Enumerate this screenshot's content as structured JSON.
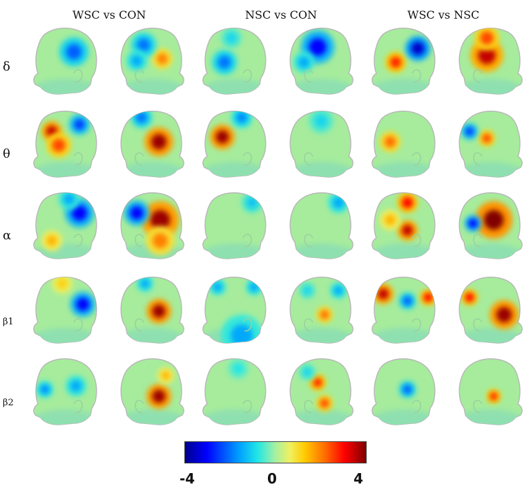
{
  "columns": [
    "WSC vs CON",
    "NSC vs CON",
    "WSC vs NSC"
  ],
  "rows": [
    "δ",
    "θ",
    "α",
    "β1",
    "β2"
  ],
  "colorbar": {
    "min_label": "-4",
    "mid_label": "0",
    "max_label": "4",
    "range": [
      -4,
      4
    ]
  },
  "heads": [
    [
      {
        "view": "L",
        "blobs": [
          [
            0.62,
            0.35,
            -2.2,
            0.14
          ]
        ]
      },
      {
        "view": "R",
        "blobs": [
          [
            0.35,
            0.45,
            2.0,
            0.1
          ],
          [
            0.62,
            0.25,
            -2.0,
            0.12
          ],
          [
            0.72,
            0.48,
            -1.5,
            0.1
          ]
        ]
      },
      {
        "view": "L",
        "blobs": [
          [
            0.35,
            0.5,
            -2.0,
            0.12
          ],
          [
            0.45,
            0.15,
            -1.0,
            0.1
          ]
        ]
      },
      {
        "view": "R",
        "blobs": [
          [
            0.55,
            0.28,
            -3.0,
            0.16
          ],
          [
            0.75,
            0.5,
            -1.5,
            0.1
          ]
        ]
      },
      {
        "view": "L",
        "blobs": [
          [
            0.38,
            0.5,
            2.8,
            0.1
          ],
          [
            0.7,
            0.3,
            -3.5,
            0.12
          ]
        ]
      },
      {
        "view": "R",
        "blobs": [
          [
            0.55,
            0.4,
            3.5,
            0.16
          ],
          [
            0.55,
            0.15,
            2.5,
            0.12
          ]
        ]
      }
    ],
    [
      {
        "view": "L",
        "blobs": [
          [
            0.3,
            0.3,
            3.5,
            0.1
          ],
          [
            0.4,
            0.5,
            2.5,
            0.12
          ],
          [
            0.7,
            0.2,
            -2.5,
            0.1
          ]
        ]
      },
      {
        "view": "R",
        "blobs": [
          [
            0.4,
            0.45,
            3.8,
            0.14
          ],
          [
            0.65,
            0.1,
            -2.0,
            0.1
          ]
        ]
      },
      {
        "view": "L",
        "blobs": [
          [
            0.32,
            0.38,
            3.8,
            0.12
          ],
          [
            0.6,
            0.1,
            -1.8,
            0.1
          ]
        ]
      },
      {
        "view": "R",
        "blobs": [
          [
            0.5,
            0.15,
            -1.0,
            0.12
          ]
        ]
      },
      {
        "view": "L",
        "blobs": [
          [
            0.3,
            0.45,
            2.2,
            0.1
          ]
        ]
      },
      {
        "view": "R",
        "blobs": [
          [
            0.55,
            0.4,
            2.5,
            0.08
          ],
          [
            0.8,
            0.3,
            -2.5,
            0.08
          ]
        ]
      }
    ],
    [
      {
        "view": "L",
        "blobs": [
          [
            0.7,
            0.3,
            -3.0,
            0.14
          ],
          [
            0.55,
            0.1,
            -1.5,
            0.1
          ],
          [
            0.3,
            0.7,
            1.5,
            0.1
          ]
        ]
      },
      {
        "view": "R",
        "blobs": [
          [
            0.38,
            0.4,
            3.8,
            0.18
          ],
          [
            0.38,
            0.7,
            2.0,
            0.14
          ],
          [
            0.72,
            0.3,
            -3.0,
            0.12
          ]
        ]
      },
      {
        "view": "L",
        "blobs": [
          [
            0.75,
            0.15,
            -1.2,
            0.1
          ]
        ]
      },
      {
        "view": "R",
        "blobs": [
          [
            0.25,
            0.15,
            -1.5,
            0.1
          ]
        ]
      },
      {
        "view": "L",
        "blobs": [
          [
            0.55,
            0.15,
            3.0,
            0.1
          ],
          [
            0.55,
            0.55,
            3.5,
            0.1
          ],
          [
            0.3,
            0.4,
            1.5,
            0.1
          ]
        ]
      },
      {
        "view": "R",
        "blobs": [
          [
            0.45,
            0.4,
            4.0,
            0.18
          ],
          [
            0.75,
            0.45,
            -3.0,
            0.08
          ]
        ]
      }
    ],
    [
      {
        "view": "L",
        "blobs": [
          [
            0.75,
            0.4,
            -3.0,
            0.12
          ],
          [
            0.45,
            0.1,
            1.2,
            0.1
          ]
        ]
      },
      {
        "view": "R",
        "blobs": [
          [
            0.4,
            0.5,
            3.8,
            0.12
          ],
          [
            0.6,
            0.1,
            -1.5,
            0.08
          ]
        ]
      },
      {
        "view": "L",
        "blobs": [
          [
            0.6,
            0.85,
            -1.5,
            0.2
          ],
          [
            0.25,
            0.15,
            -1.5,
            0.08
          ],
          [
            0.78,
            0.15,
            -1.5,
            0.08
          ]
        ]
      },
      {
        "view": "R",
        "blobs": [
          [
            0.45,
            0.55,
            2.2,
            0.08
          ],
          [
            0.25,
            0.2,
            -1.5,
            0.08
          ],
          [
            0.7,
            0.2,
            -1.0,
            0.08
          ]
        ]
      },
      {
        "view": "L",
        "blobs": [
          [
            0.2,
            0.25,
            3.5,
            0.1
          ],
          [
            0.55,
            0.35,
            -2.2,
            0.08
          ],
          [
            0.85,
            0.3,
            3.0,
            0.08
          ]
        ]
      },
      {
        "view": "R",
        "blobs": [
          [
            0.3,
            0.55,
            3.8,
            0.14
          ],
          [
            0.8,
            0.3,
            3.0,
            0.08
          ]
        ]
      }
    ],
    [
      {
        "view": "L",
        "blobs": [
          [
            0.2,
            0.45,
            -1.8,
            0.08
          ],
          [
            0.65,
            0.4,
            -1.5,
            0.1
          ]
        ]
      },
      {
        "view": "R",
        "blobs": [
          [
            0.4,
            0.55,
            3.8,
            0.12
          ],
          [
            0.3,
            0.25,
            1.5,
            0.08
          ]
        ]
      },
      {
        "view": "L",
        "blobs": [
          [
            0.55,
            0.15,
            -0.8,
            0.1
          ]
        ]
      },
      {
        "view": "R",
        "blobs": [
          [
            0.55,
            0.35,
            2.8,
            0.08
          ],
          [
            0.45,
            0.65,
            2.5,
            0.08
          ],
          [
            0.7,
            0.2,
            -1.0,
            0.08
          ]
        ]
      },
      {
        "view": "L",
        "blobs": [
          [
            0.55,
            0.45,
            -2.2,
            0.08
          ]
        ]
      },
      {
        "view": "R",
        "blobs": [
          [
            0.45,
            0.55,
            2.8,
            0.07
          ]
        ]
      }
    ]
  ]
}
